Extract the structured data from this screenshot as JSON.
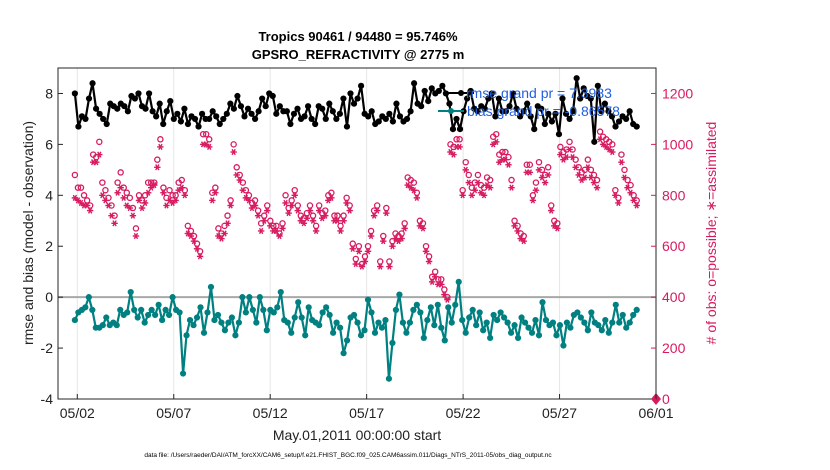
{
  "chart_data": {
    "type": "line",
    "title_line1": "Tropics 90461 / 94480 = 95.746%",
    "title_line2": "GPSRO_REFRACTIVITY @ 2775 m",
    "xlabel": "May.01,2011 00:00:00 start",
    "ylabel_left": "rmse and bias (model - observation)",
    "ylabel_right": "# of obs: o=possible; ∗=assimilated",
    "footer": "data file: /Users/raeder/DAI/ATM_forcXX/CAM6_setup/f.e21.FHIST_BGC.f09_025.CAM6assim.011/Diags_NTrS_2011-05/obs_diag_output.nc",
    "x_tick_labels": [
      "05/02",
      "05/07",
      "05/12",
      "05/17",
      "05/22",
      "05/27",
      "06/01"
    ],
    "x_tick_days": [
      1,
      6,
      11,
      16,
      21,
      26,
      31
    ],
    "x_range_days": [
      0,
      31
    ],
    "y_left_range": [
      -4,
      9
    ],
    "y_left_ticks": [
      "-4",
      "-2",
      "0",
      "2",
      "4",
      "6",
      "8"
    ],
    "y_right_range": [
      0,
      1300
    ],
    "y_right_ticks": [
      "0",
      "200",
      "400",
      "600",
      "800",
      "1000",
      "1200"
    ],
    "legend": {
      "rmse_label": "rmse grand pr = 7.3983",
      "bias_label": "bias grand pr = -0.86578"
    },
    "colors": {
      "rmse": "#000000",
      "bias": "#008080",
      "obs": "#d81b60",
      "zero_line": "#a8a8a8",
      "legend_text": "#1f5fe0"
    },
    "series": [
      {
        "name": "rmse",
        "axis": "left",
        "values": [
          8.0,
          6.7,
          7.1,
          7.0,
          7.8,
          8.4,
          7.4,
          7.2,
          7.0,
          6.8,
          7.6,
          7.5,
          7.4,
          7.6,
          7.5,
          7.3,
          7.9,
          7.8,
          8.0,
          7.5,
          7.4,
          8.0,
          7.3,
          7.1,
          7.6,
          6.8,
          7.3,
          7.7,
          7.0,
          7.2,
          6.9,
          7.4,
          6.8,
          7.1,
          7.0,
          6.7,
          7.2,
          7.0,
          7.0,
          7.3,
          7.1,
          6.8,
          7.0,
          7.2,
          7.6,
          7.4,
          7.9,
          7.5,
          7.1,
          7.4,
          7.2,
          7.0,
          7.3,
          7.8,
          7.5,
          8.0,
          7.9,
          7.2,
          7.5,
          7.3,
          7.3,
          6.8,
          7.2,
          7.4,
          7.0,
          7.1,
          7.5,
          7.0,
          6.8,
          7.5,
          7.4,
          7.0,
          7.6,
          7.3,
          7.0,
          7.2,
          7.8,
          6.7,
          8.0,
          7.6,
          7.8,
          8.3,
          7.2,
          7.1,
          7.3,
          6.8,
          6.9,
          7.1,
          7.0,
          7.2,
          6.9,
          7.6,
          7.1,
          6.9,
          7.0,
          7.3,
          8.4,
          7.6,
          7.5,
          8.1,
          7.7,
          8.2,
          8.0,
          8.1,
          8.3,
          8.0,
          7.6,
          6.6,
          7.0,
          6.6,
          7.3,
          7.8,
          8.1,
          7.4,
          7.3,
          7.5,
          7.4,
          7.8,
          8.0,
          7.1,
          7.8,
          7.3,
          7.3,
          7.5,
          8.0,
          7.4,
          7.1,
          7.3,
          7.6,
          7.1,
          6.6,
          7.5,
          7.4,
          6.8,
          7.2,
          6.9,
          7.2,
          6.4,
          7.8,
          7.2,
          7.0,
          7.3,
          8.6,
          7.8,
          8.2,
          7.9,
          7.8,
          6.1,
          8.3,
          7.3,
          7.6,
          7.3,
          7.1,
          6.7,
          6.9,
          7.1,
          7.0,
          7.3,
          6.8,
          6.7
        ]
      },
      {
        "name": "bias",
        "axis": "left",
        "values": [
          -0.9,
          -0.6,
          -0.5,
          -0.4,
          0.0,
          -0.5,
          -1.2,
          -1.2,
          -1.1,
          -0.8,
          -1.1,
          -1.0,
          -1.1,
          -0.5,
          -0.7,
          -0.6,
          0.2,
          -0.5,
          -0.8,
          -0.5,
          -1.0,
          -0.7,
          -0.5,
          -0.7,
          -0.3,
          -0.9,
          -0.5,
          -0.7,
          0.0,
          -0.5,
          -0.6,
          -3.0,
          -1.5,
          -0.9,
          -1.1,
          -0.8,
          -0.4,
          -1.4,
          -0.6,
          0.4,
          -0.9,
          -0.7,
          -1.0,
          -1.3,
          -1.0,
          -0.8,
          -1.5,
          -1.0,
          0.0,
          -0.6,
          0.0,
          -0.5,
          -1.0,
          0.0,
          -0.5,
          -1.3,
          -0.5,
          -0.6,
          -0.4,
          0.2,
          -0.9,
          -1.0,
          -1.4,
          -0.8,
          -0.2,
          -0.8,
          -1.5,
          -0.4,
          -0.9,
          -1.0,
          -1.1,
          -0.6,
          -0.4,
          -0.7,
          -1.4,
          -1.0,
          -1.2,
          -2.2,
          -1.7,
          -0.8,
          -0.7,
          -1.0,
          -1.5,
          -1.3,
          -0.1,
          -0.6,
          -1.4,
          -1.0,
          -1.2,
          -0.9,
          -3.2,
          -1.8,
          -0.5,
          0.1,
          -1.0,
          -1.4,
          -1.0,
          -0.5,
          -0.3,
          -0.6,
          -1.6,
          -0.9,
          -0.4,
          -1.1,
          -0.3,
          -1.2,
          -1.7,
          -0.4,
          -1.0,
          -0.3,
          0.6,
          -0.9,
          -1.4,
          -0.8,
          -0.5,
          -1.1,
          -0.6,
          -1.3,
          -1.0,
          -1.6,
          -0.7,
          -0.9,
          -0.6,
          -0.8,
          -1.0,
          -1.4,
          -1.1,
          -1.6,
          -0.8,
          -1.0,
          -1.2,
          -1.4,
          -0.9,
          -1.5,
          -0.2,
          -0.9,
          -1.1,
          -1.0,
          -1.5,
          -1.1,
          -1.9,
          -1.0,
          -1.2,
          -0.7,
          -0.6,
          -0.8,
          -1.0,
          -1.3,
          -0.6,
          -1.0,
          -1.1,
          -1.3,
          -0.9,
          -1.4,
          -1.0,
          -0.3,
          -1.0,
          -0.7,
          -1.2,
          -1.0,
          -0.7,
          -0.5
        ]
      },
      {
        "name": "possible",
        "axis": "right",
        "values": [
          880,
          830,
          830,
          800,
          780,
          760,
          960,
          950,
          1010,
          850,
          820,
          790,
          760,
          720,
          850,
          890,
          830,
          810,
          790,
          750,
          670,
          800,
          780,
          800,
          850,
          850,
          850,
          940,
          1020,
          830,
          790,
          820,
          800,
          800,
          850,
          860,
          820,
          680,
          660,
          640,
          610,
          580,
          1040,
          1040,
          1020,
          810,
          830,
          670,
          650,
          680,
          720,
          780,
          1000,
          910,
          880,
          850,
          820,
          800,
          770,
          780,
          740,
          690,
          720,
          760,
          700,
          680,
          680,
          650,
          690,
          800,
          750,
          780,
          820,
          760,
          720,
          710,
          730,
          760,
          720,
          680,
          760,
          730,
          740,
          800,
          810,
          720,
          720,
          680,
          720,
          790,
          760,
          610,
          550,
          600,
          530,
          560,
          600,
          660,
          740,
          760,
          540,
          640,
          750,
          540,
          620,
          650,
          640,
          650,
          690,
          870,
          860,
          850,
          810,
          700,
          690,
          600,
          560,
          480,
          500,
          470,
          470,
          430,
          400,
          1000,
          990,
          1020,
          1020,
          820,
          930,
          880,
          830,
          850,
          880,
          840,
          830,
          870,
          860,
          1030,
          1040,
          960,
          970,
          970,
          950,
          860,
          700,
          680,
          650,
          640,
          920,
          920,
          800,
          850,
          930,
          900,
          880,
          910,
          760,
          700,
          690,
          990,
          970,
          980,
          1010,
          980,
          940,
          910,
          890,
          900,
          940,
          900,
          880,
          860,
          1050,
          1030,
          1020,
          1010,
          1000,
          820,
          790,
          960,
          900,
          860,
          840,
          800,
          780
        ]
      },
      {
        "name": "assimilated",
        "axis": "right",
        "values": [
          790,
          780,
          770,
          760,
          760,
          740,
          930,
          930,
          960,
          800,
          780,
          760,
          720,
          690,
          810,
          830,
          790,
          760,
          750,
          720,
          640,
          780,
          750,
          770,
          810,
          830,
          840,
          910,
          990,
          810,
          760,
          780,
          770,
          780,
          820,
          830,
          800,
          650,
          640,
          620,
          590,
          560,
          1000,
          1000,
          990,
          780,
          810,
          640,
          630,
          650,
          690,
          760,
          970,
          880,
          860,
          820,
          790,
          780,
          750,
          760,
          720,
          660,
          700,
          740,
          680,
          660,
          660,
          640,
          670,
          770,
          730,
          760,
          800,
          740,
          700,
          690,
          710,
          740,
          700,
          660,
          740,
          710,
          720,
          780,
          790,
          700,
          700,
          660,
          700,
          770,
          740,
          590,
          530,
          580,
          520,
          540,
          580,
          640,
          720,
          740,
          520,
          620,
          730,
          520,
          600,
          630,
          620,
          630,
          670,
          840,
          830,
          820,
          790,
          680,
          670,
          580,
          540,
          460,
          480,
          450,
          450,
          410,
          390,
          970,
          960,
          990,
          990,
          800,
          900,
          850,
          800,
          820,
          850,
          810,
          800,
          840,
          830,
          1000,
          1010,
          930,
          940,
          940,
          920,
          830,
          680,
          660,
          630,
          620,
          890,
          890,
          780,
          820,
          900,
          870,
          850,
          880,
          740,
          680,
          670,
          960,
          940,
          950,
          980,
          950,
          910,
          880,
          860,
          870,
          910,
          870,
          850,
          830,
          1020,
          1000,
          990,
          980,
          970,
          800,
          770,
          930,
          870,
          830,
          810,
          780,
          760
        ]
      }
    ]
  }
}
